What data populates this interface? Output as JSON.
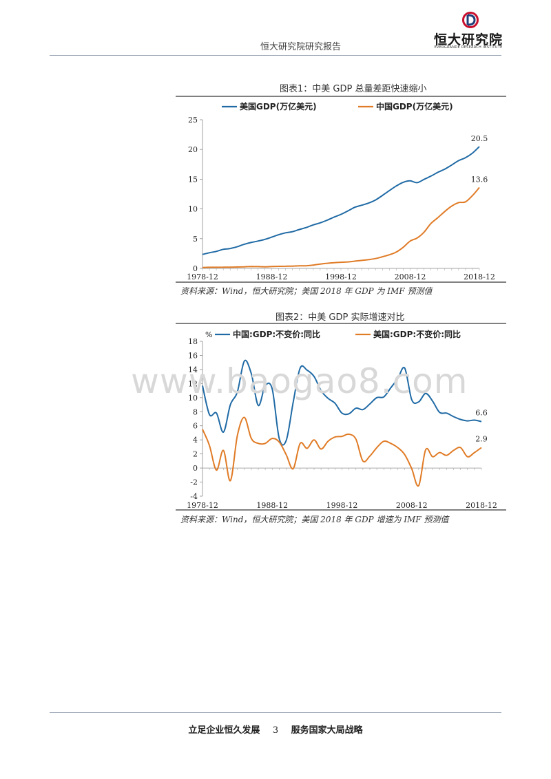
{
  "header": {
    "title": "恒大研究院研究报告",
    "logo_text": "恒大研究院",
    "logo_subtext": "EVERGRANDE RESEARCH INSTITUTE"
  },
  "watermark": "www.baogao8.com",
  "footer": {
    "left": "立足企业恒久发展",
    "page": "3",
    "right": "服务国家大局战略"
  },
  "colors": {
    "blue": "#1f6aa5",
    "orange": "#e07b26"
  },
  "figures": [
    {
      "title": "图表1：中美 GDP 总量差距快速缩小",
      "source": "资料来源：Wind，恒大研究院；美国 2018 年 GDP 为 IMF 预测值"
    },
    {
      "title": "图表2：中美 GDP 实际增速对比",
      "source": "资料来源：Wind，恒大研究院；美国 2018 年 GDP 增速为 IMF 预测值"
    }
  ],
  "chart_data": [
    {
      "type": "line",
      "x_ticks": [
        "1978-12",
        "1988-12",
        "1998-12",
        "2008-12",
        "2018-12"
      ],
      "ylim": [
        0,
        25
      ],
      "y_ticks": [
        "0",
        "5",
        "10",
        "15",
        "20",
        "25"
      ],
      "grid": false,
      "legend": "top",
      "x": [
        1978,
        1979,
        1980,
        1981,
        1982,
        1983,
        1984,
        1985,
        1986,
        1987,
        1988,
        1989,
        1990,
        1991,
        1992,
        1993,
        1994,
        1995,
        1996,
        1997,
        1998,
        1999,
        2000,
        2001,
        2002,
        2003,
        2004,
        2005,
        2006,
        2007,
        2008,
        2009,
        2010,
        2011,
        2012,
        2013,
        2014,
        2015,
        2016,
        2017,
        2018
      ],
      "series": [
        {
          "name": "美国GDP(万亿美元)",
          "color": "#1f6aa5",
          "end_label": "20.5",
          "values": [
            2.35,
            2.63,
            2.86,
            3.21,
            3.34,
            3.64,
            4.04,
            4.35,
            4.59,
            4.87,
            5.25,
            5.66,
            5.98,
            6.17,
            6.54,
            6.88,
            7.31,
            7.66,
            8.1,
            8.61,
            9.09,
            9.66,
            10.28,
            10.62,
            10.98,
            11.51,
            12.27,
            13.09,
            13.86,
            14.48,
            14.72,
            14.42,
            14.96,
            15.52,
            16.16,
            16.69,
            17.39,
            18.12,
            18.62,
            19.39,
            20.49
          ]
        },
        {
          "name": "中国GDP(万亿美元)",
          "color": "#e07b26",
          "end_label": "13.6",
          "values": [
            0.15,
            0.18,
            0.19,
            0.2,
            0.21,
            0.23,
            0.26,
            0.31,
            0.3,
            0.27,
            0.31,
            0.35,
            0.36,
            0.38,
            0.43,
            0.44,
            0.56,
            0.73,
            0.86,
            0.96,
            1.03,
            1.09,
            1.21,
            1.34,
            1.47,
            1.66,
            1.96,
            2.29,
            2.75,
            3.55,
            4.59,
            5.1,
            6.09,
            7.55,
            8.53,
            9.57,
            10.48,
            11.06,
            11.19,
            12.24,
            13.61
          ]
        }
      ]
    },
    {
      "type": "line",
      "x_ticks": [
        "1978-12",
        "1988-12",
        "1998-12",
        "2008-12",
        "2018-12"
      ],
      "ylabel": "%",
      "ylim": [
        -4,
        18
      ],
      "y_ticks": [
        "-4",
        "-2",
        "0",
        "2",
        "4",
        "6",
        "8",
        "10",
        "12",
        "14",
        "16",
        "18"
      ],
      "grid": false,
      "legend": "top",
      "x": [
        1978,
        1979,
        1980,
        1981,
        1982,
        1983,
        1984,
        1985,
        1986,
        1987,
        1988,
        1989,
        1990,
        1991,
        1992,
        1993,
        1994,
        1995,
        1996,
        1997,
        1998,
        1999,
        2000,
        2001,
        2002,
        2003,
        2004,
        2005,
        2006,
        2007,
        2008,
        2009,
        2010,
        2011,
        2012,
        2013,
        2014,
        2015,
        2016,
        2017,
        2018
      ],
      "series": [
        {
          "name": "中国:GDP:不变价:同比",
          "color": "#1f6aa5",
          "end_label": "6.6",
          "values": [
            11.7,
            7.6,
            7.8,
            5.1,
            9.0,
            10.8,
            15.2,
            13.4,
            8.9,
            11.7,
            11.2,
            4.2,
            3.9,
            9.3,
            14.2,
            13.9,
            13.0,
            11.0,
            9.9,
            9.2,
            7.8,
            7.7,
            8.5,
            8.3,
            9.1,
            10.0,
            10.1,
            11.4,
            12.7,
            14.2,
            9.7,
            9.4,
            10.6,
            9.5,
            7.9,
            7.8,
            7.3,
            6.9,
            6.7,
            6.8,
            6.6
          ]
        },
        {
          "name": "美国:GDP:不变价:同比",
          "color": "#e07b26",
          "end_label": "2.9",
          "values": [
            5.5,
            3.2,
            -0.3,
            2.5,
            -1.8,
            4.6,
            7.2,
            4.2,
            3.5,
            3.5,
            4.2,
            3.7,
            1.9,
            -0.1,
            3.5,
            2.8,
            4.0,
            2.7,
            3.8,
            4.4,
            4.5,
            4.8,
            4.1,
            1.0,
            1.7,
            2.9,
            3.8,
            3.5,
            2.9,
            1.9,
            -0.1,
            -2.5,
            2.6,
            1.6,
            2.2,
            1.8,
            2.5,
            2.9,
            1.6,
            2.2,
            2.9
          ]
        }
      ]
    }
  ]
}
